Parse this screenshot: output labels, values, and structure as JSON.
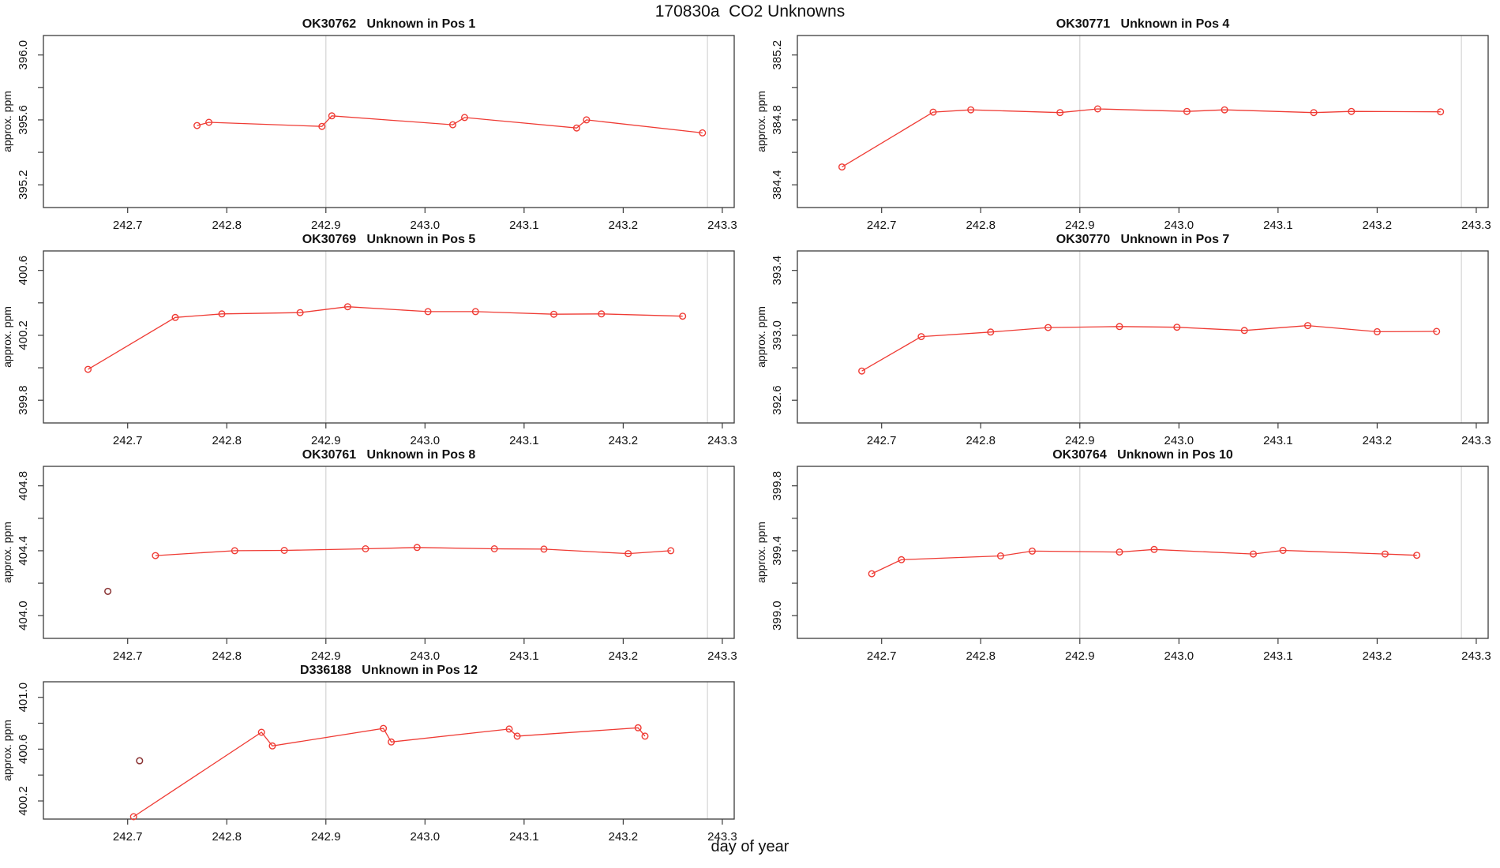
{
  "title": "170830a  CO2 Unknowns",
  "chart_data": {
    "type": "line",
    "title": "170830a  CO2 Unknowns",
    "xlabel": "day of year",
    "ylabel": "approx. ppm",
    "legend": "none",
    "grid": "vertical-lines-only",
    "x_ticks": [
      242.7,
      242.8,
      242.9,
      243.0,
      243.1,
      243.2,
      243.3
    ],
    "x_tick_labels": [
      "242.7",
      "242.8",
      "242.9",
      "243.0",
      "243.1",
      "243.2",
      "243.3"
    ],
    "xlim": [
      242.615,
      243.312
    ],
    "gridlines_x": [
      242.9,
      243.285
    ],
    "line_color": "#ef3b34",
    "outlier_color": "#8a3434",
    "axis_color": "#3c3c3c",
    "grid_color": "#d4d4d4",
    "panels": [
      {
        "id": "OK30762",
        "title": "OK30762   Unknown in Pos 1",
        "sample": "OK30762",
        "position": "Unknown in Pos 1",
        "y_ticks": [
          395.2,
          395.6,
          396.0
        ],
        "y_tick_labels": [
          "395.2",
          "395.6",
          "396.0"
        ],
        "ylim": [
          395.06,
          396.12
        ],
        "series": {
          "x": [
            242.77,
            242.782,
            242.896,
            242.906,
            243.028,
            243.04,
            243.153,
            243.163,
            243.28
          ],
          "y": [
            395.565,
            395.585,
            395.56,
            395.625,
            395.57,
            395.615,
            395.55,
            395.6,
            395.52
          ]
        }
      },
      {
        "id": "OK30771",
        "title": "OK30771   Unknown in Pos 4",
        "sample": "OK30771",
        "position": "Unknown in Pos 4",
        "y_ticks": [
          384.4,
          384.8,
          385.2
        ],
        "y_tick_labels": [
          "384.4",
          "384.8",
          "385.2"
        ],
        "ylim": [
          384.26,
          385.32
        ],
        "series": {
          "x": [
            242.66,
            242.752,
            242.79,
            242.88,
            242.918,
            243.008,
            243.046,
            243.136,
            243.174,
            243.264
          ],
          "y": [
            384.51,
            384.848,
            384.862,
            384.845,
            384.868,
            384.852,
            384.862,
            384.845,
            384.852,
            384.85
          ]
        }
      },
      {
        "id": "OK30769",
        "title": "OK30769   Unknown in Pos 5",
        "sample": "OK30769",
        "position": "Unknown in Pos 5",
        "y_ticks": [
          399.8,
          400.2,
          400.6
        ],
        "y_tick_labels": [
          "399.8",
          "400.2",
          "400.6"
        ],
        "ylim": [
          399.66,
          400.72
        ],
        "series": {
          "x": [
            242.66,
            242.748,
            242.795,
            242.874,
            242.922,
            243.003,
            243.051,
            243.13,
            243.178,
            243.26
          ],
          "y": [
            399.99,
            400.31,
            400.332,
            400.34,
            400.376,
            400.346,
            400.346,
            400.33,
            400.332,
            400.318
          ]
        }
      },
      {
        "id": "OK30770",
        "title": "OK30770   Unknown in Pos 7",
        "sample": "OK30770",
        "position": "Unknown in Pos 7",
        "y_ticks": [
          392.6,
          393.0,
          393.4
        ],
        "y_tick_labels": [
          "392.6",
          "393.0",
          "393.4"
        ],
        "ylim": [
          392.46,
          393.52
        ],
        "series": {
          "x": [
            242.68,
            242.74,
            242.81,
            242.868,
            242.94,
            242.998,
            243.066,
            243.13,
            243.2,
            243.26
          ],
          "y": [
            392.78,
            392.992,
            393.02,
            393.048,
            393.054,
            393.05,
            393.03,
            393.06,
            393.022,
            393.024
          ]
        }
      },
      {
        "id": "OK30761",
        "title": "OK30761   Unknown in Pos 8",
        "sample": "OK30761",
        "position": "Unknown in Pos 8",
        "y_ticks": [
          404.0,
          404.4,
          404.8
        ],
        "y_tick_labels": [
          "404.0",
          "404.4",
          "404.8"
        ],
        "ylim": [
          403.86,
          404.92
        ],
        "series": {
          "x": [
            242.728,
            242.808,
            242.858,
            242.94,
            242.992,
            243.07,
            243.12,
            243.205,
            243.248
          ],
          "y": [
            404.37,
            404.4,
            404.402,
            404.412,
            404.42,
            404.412,
            404.41,
            404.382,
            404.4
          ]
        },
        "isolated": {
          "x": [
            242.68
          ],
          "y": [
            404.15
          ]
        }
      },
      {
        "id": "OK30764",
        "title": "OK30764   Unknown in Pos 10",
        "sample": "OK30764",
        "position": "Unknown in Pos 10",
        "y_ticks": [
          399.0,
          399.4,
          399.8
        ],
        "y_tick_labels": [
          "399.0",
          "399.4",
          "399.8"
        ],
        "ylim": [
          398.86,
          399.92
        ],
        "series": {
          "x": [
            242.69,
            242.72,
            242.82,
            242.852,
            242.94,
            242.975,
            243.075,
            243.105,
            243.208,
            243.24
          ],
          "y": [
            399.258,
            399.345,
            399.368,
            399.398,
            399.392,
            399.408,
            399.38,
            399.402,
            399.38,
            399.372
          ]
        }
      },
      {
        "id": "D336188",
        "title": "D336188   Unknown in Pos 12",
        "sample": "D336188",
        "position": "Unknown in Pos 12",
        "y_ticks": [
          400.2,
          400.6,
          401.0
        ],
        "y_tick_labels": [
          "400.2",
          "400.6",
          "401.0"
        ],
        "ylim": [
          400.06,
          401.12
        ],
        "series": {
          "x": [
            242.706,
            242.835,
            242.846,
            242.958,
            242.966,
            243.085,
            243.093,
            243.215,
            243.222
          ],
          "y": [
            400.078,
            400.73,
            400.625,
            400.76,
            400.655,
            400.755,
            400.7,
            400.765,
            400.7
          ]
        },
        "isolated": {
          "x": [
            242.712
          ],
          "y": [
            400.51
          ]
        }
      }
    ]
  }
}
